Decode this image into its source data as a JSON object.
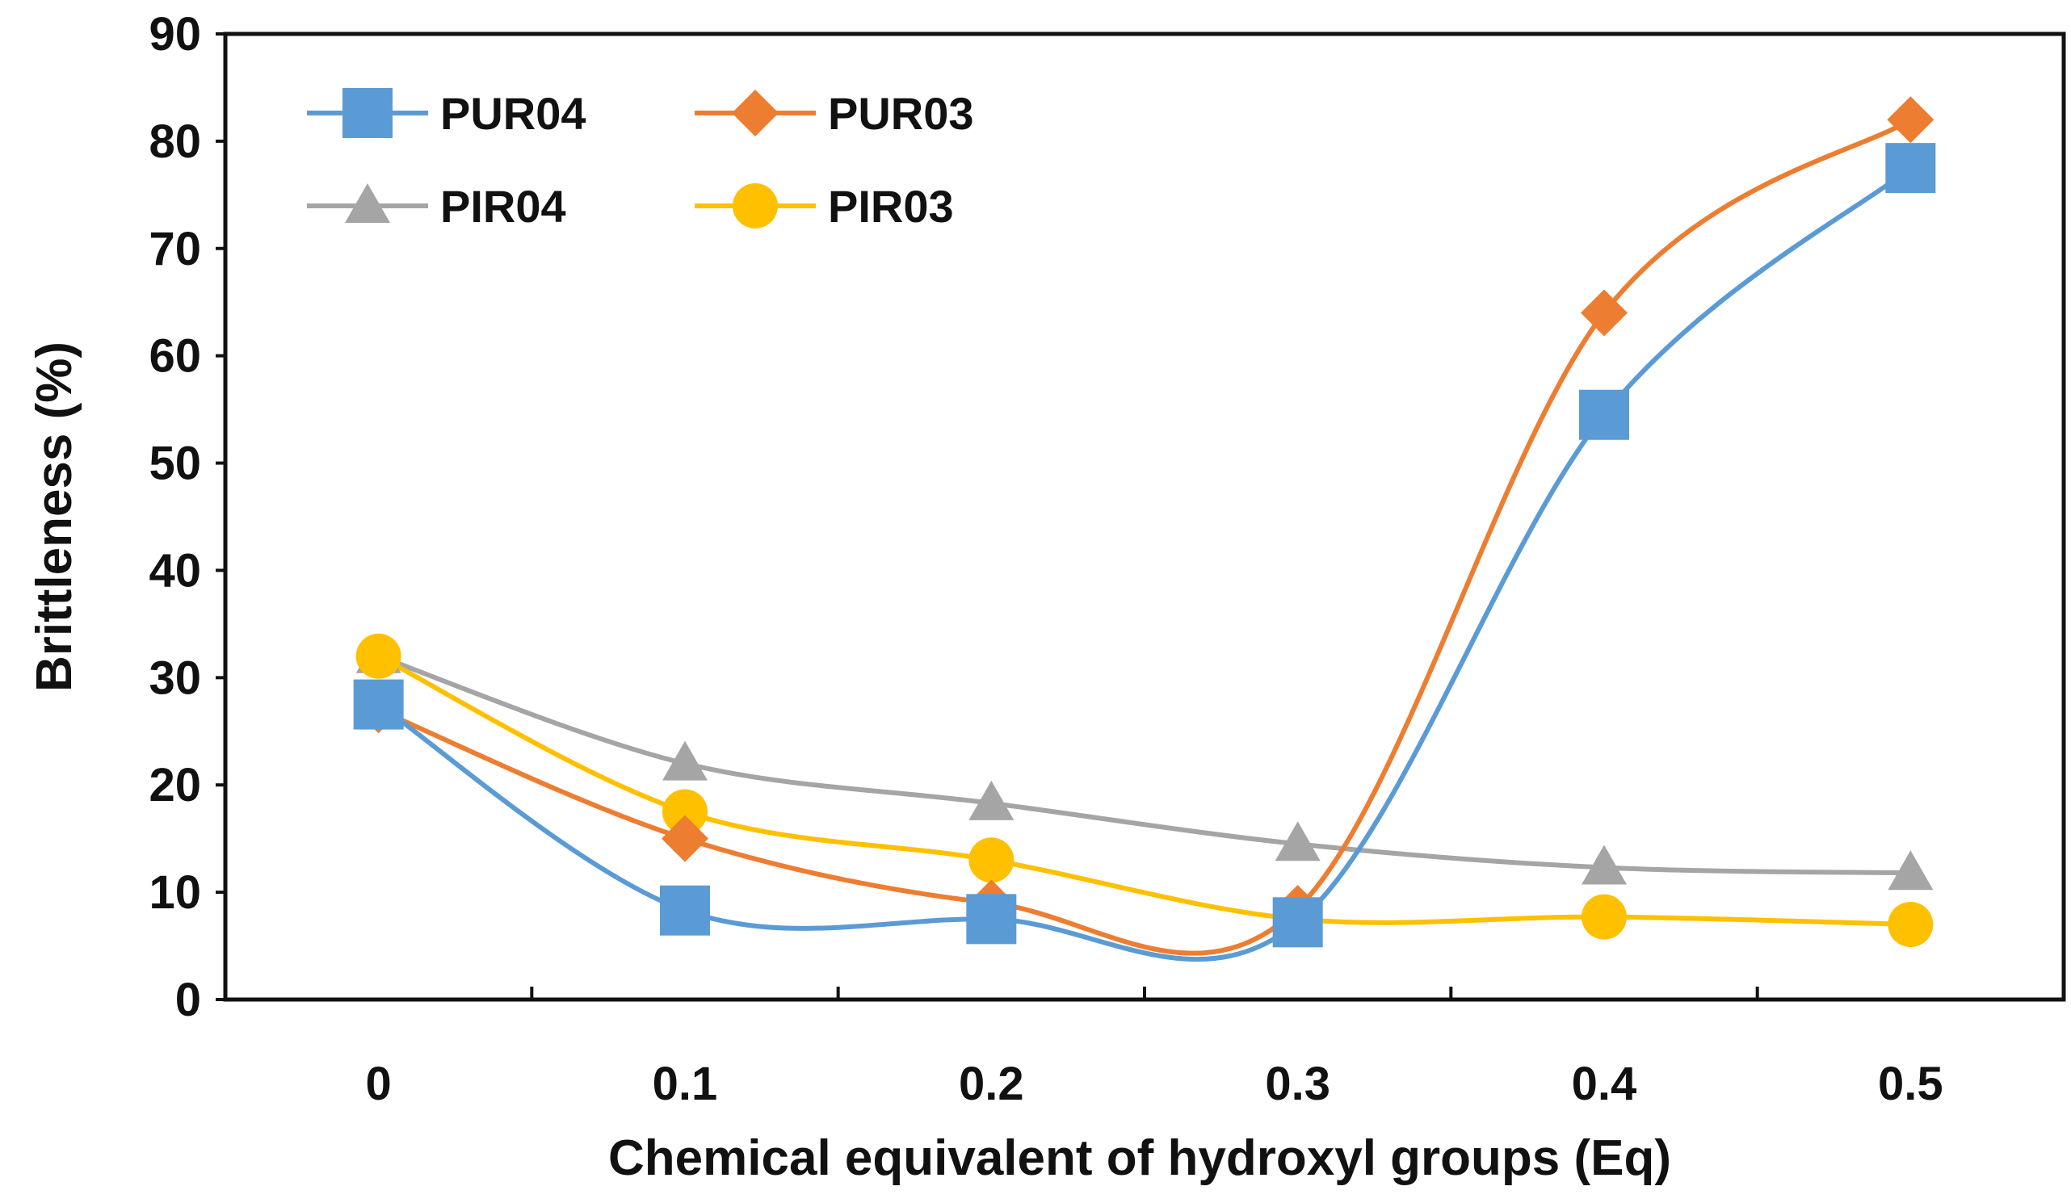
{
  "chart_data": {
    "type": "line",
    "xlabel": "Chemical equivalent of hydroxyl groups (Eq)",
    "ylabel": "Brittleness (%)",
    "x": [
      0,
      0.1,
      0.2,
      0.3,
      0.4,
      0.5
    ],
    "x_tick_labels": [
      "0",
      "0.1",
      "0.2",
      "0.3",
      "0.4",
      "0.5"
    ],
    "y_ticks": [
      0,
      10,
      20,
      30,
      40,
      50,
      60,
      70,
      80,
      90
    ],
    "ylim": [
      0,
      90
    ],
    "legend_position": "top-left",
    "series": [
      {
        "name": "PUR04",
        "marker": "square",
        "color": "#5B9BD5",
        "values": [
          27.5,
          8.3,
          7.5,
          7.2,
          54.5,
          77.5
        ]
      },
      {
        "name": "PUR03",
        "marker": "diamond",
        "color": "#ED7D31",
        "values": [
          27.0,
          15.0,
          9.0,
          8.5,
          64.0,
          82.0
        ]
      },
      {
        "name": "PIR04",
        "marker": "triangle",
        "color": "#A5A5A5",
        "values": [
          32.0,
          22.0,
          18.3,
          14.5,
          12.3,
          11.8
        ]
      },
      {
        "name": "PIR03",
        "marker": "circle",
        "color": "#FFC000",
        "values": [
          32.0,
          17.5,
          13.0,
          7.5,
          7.7,
          7.0
        ]
      }
    ]
  }
}
